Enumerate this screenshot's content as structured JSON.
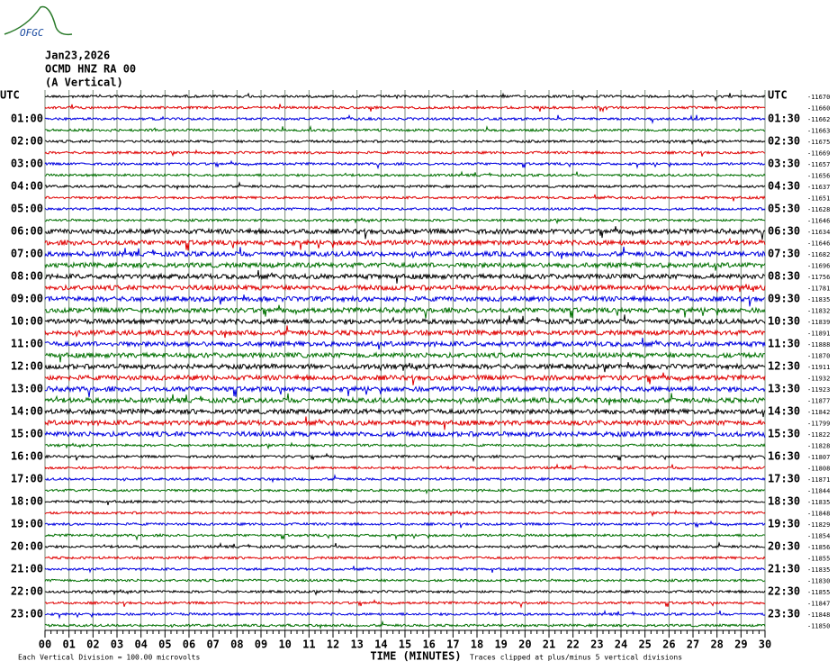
{
  "logo": "OFGC",
  "header": [
    "Jan23,2026",
    "OCMD HNZ RA 00",
    "(A Vertical)"
  ],
  "left_labels": [
    "UTC",
    "01:00",
    "02:00",
    "03:00",
    "04:00",
    "05:00",
    "06:00",
    "07:00",
    "08:00",
    "09:00",
    "10:00",
    "11:00",
    "12:00",
    "13:00",
    "14:00",
    "15:00",
    "16:00",
    "17:00",
    "18:00",
    "19:00",
    "20:00",
    "21:00",
    "22:00",
    "23:00"
  ],
  "right_labels": [
    "UTC",
    "01:30",
    "02:30",
    "03:30",
    "04:30",
    "05:30",
    "06:30",
    "07:30",
    "08:30",
    "09:30",
    "10:30",
    "11:30",
    "12:30",
    "13:30",
    "14:30",
    "15:30",
    "16:30",
    "17:30",
    "18:30",
    "19:30",
    "20:30",
    "21:30",
    "22:30",
    "23:30"
  ],
  "offsets": [
    -11670,
    -11660,
    -11662,
    -11663,
    -11675,
    -11669,
    -11657,
    -11656,
    -11637,
    -11651,
    -11628,
    -11646,
    -11634,
    -11646,
    -11682,
    -11696,
    -11756,
    -11781,
    -11835,
    -11832,
    -11839,
    -11891,
    -11888,
    -11870,
    -11911,
    -11932,
    -11923,
    -11877,
    -11842,
    -11799,
    -11822,
    -11828,
    -11807,
    -11808,
    -11871,
    -11844,
    -11835,
    -11848,
    -11829,
    -11854,
    -11856,
    -11855,
    -11835,
    -11830,
    -11855,
    -11847,
    -11848,
    -11850
  ],
  "x_ticks": [
    "00",
    "01",
    "02",
    "03",
    "04",
    "05",
    "06",
    "07",
    "08",
    "09",
    "10",
    "11",
    "12",
    "13",
    "14",
    "15",
    "16",
    "17",
    "18",
    "19",
    "20",
    "21",
    "22",
    "23",
    "24",
    "25",
    "26",
    "27",
    "28",
    "29",
    "30"
  ],
  "footer": {
    "division": "Each Vertical Division =  100.00 microvolts",
    "axis_title": "TIME (MINUTES)",
    "clip": "Traces clipped at plus/minus 5 vertical divisions"
  }
}
